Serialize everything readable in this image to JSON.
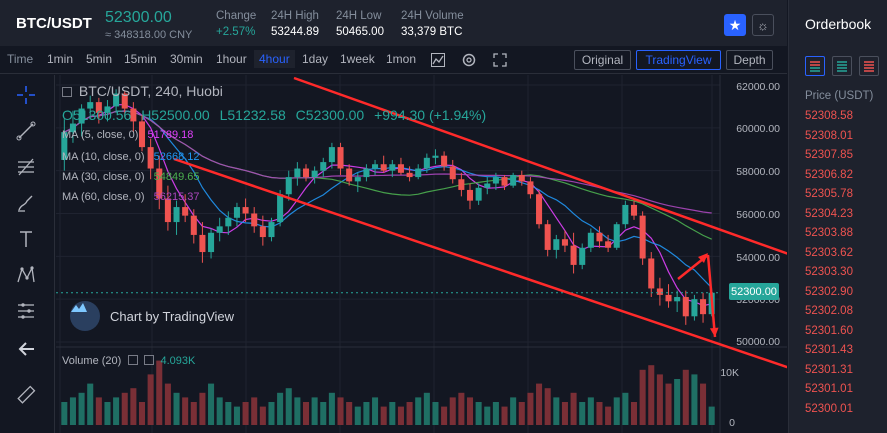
{
  "header": {
    "pair": "BTC/USDT",
    "price": "52300.00",
    "price_cny": "≈ 348318.00 CNY",
    "stats": [
      {
        "label": "Change",
        "value": "+2.57%",
        "up": true
      },
      {
        "label": "24H High",
        "value": "53244.89",
        "up": false
      },
      {
        "label": "24H Low",
        "value": "50465.00",
        "up": false
      },
      {
        "label": "24H Volume",
        "value": "33,379 BTC",
        "up": false
      }
    ],
    "favorite_icon": "star-icon",
    "theme_icon": "sun-icon"
  },
  "toolbar": {
    "time_label": "Time",
    "timeframes": [
      "1min",
      "5min",
      "15min",
      "30min",
      "1hour",
      "4hour",
      "1day",
      "1week",
      "1mon"
    ],
    "active_timeframe": "4hour",
    "views": [
      "Original",
      "TradingView",
      "Depth"
    ],
    "active_view": "TradingView"
  },
  "legend": {
    "symbol": "BTC/USDT, 240, Huobi",
    "open": "O51300.56",
    "high": "H52500.00",
    "low": "L51232.58",
    "close": "C52300.00",
    "change": "+994.30 (+1.94%)",
    "ma": [
      {
        "label": "MA (5, close, 0)",
        "value": "51789.18",
        "color": "#e040fb"
      },
      {
        "label": "MA (10, close, 0)",
        "value": "52668.12",
        "color": "#2196f3"
      },
      {
        "label": "MA (30, close, 0)",
        "value": "54849.65",
        "color": "#4caf50"
      },
      {
        "label": "MA (60, close, 0)",
        "value": "56215.37",
        "color": "#ab47bc"
      }
    ],
    "volume_label": "Volume (20)",
    "volume_value": "4.093K"
  },
  "brand": "Chart by TradingView",
  "price_axis": [
    "62000.00",
    "60000.00",
    "58000.00",
    "56000.00",
    "54000.00",
    "52000.00",
    "50000.00"
  ],
  "current_price_label": "52300.00",
  "volume_axis": [
    "10K",
    "0"
  ],
  "orderbook": {
    "title": "Orderbook",
    "column": "Price (USDT)",
    "prices": [
      "52308.58",
      "52308.01",
      "52307.85",
      "52306.82",
      "52305.78",
      "52304.23",
      "52303.88",
      "52303.62",
      "52303.30",
      "52302.90",
      "52302.08",
      "52301.60",
      "52301.43",
      "52301.31",
      "52301.01",
      "52300.01"
    ]
  },
  "colors": {
    "up": "#26a69a",
    "down": "#ef5350",
    "accent": "#2962ff",
    "annotation": "#ff2a2a"
  },
  "candles": [
    [
      58500,
      60400,
      58000,
      59800
    ],
    [
      59800,
      60800,
      59300,
      60200
    ],
    [
      60200,
      61100,
      59600,
      60900
    ],
    [
      60900,
      61500,
      60400,
      61200
    ],
    [
      61200,
      61400,
      60200,
      60700
    ],
    [
      60700,
      61300,
      60300,
      61000
    ],
    [
      61000,
      61800,
      60700,
      61600
    ],
    [
      61600,
      61700,
      60500,
      60900
    ],
    [
      60900,
      61200,
      59800,
      60300
    ],
    [
      60300,
      60600,
      58900,
      59100
    ],
    [
      59100,
      59500,
      57600,
      58100
    ],
    [
      58100,
      58700,
      56200,
      56700
    ],
    [
      56700,
      57300,
      55200,
      55600
    ],
    [
      55600,
      56600,
      55000,
      56300
    ],
    [
      56300,
      56900,
      55600,
      55900
    ],
    [
      55900,
      56200,
      54600,
      55000
    ],
    [
      55000,
      55600,
      53700,
      54200
    ],
    [
      54200,
      55300,
      53900,
      55100
    ],
    [
      55100,
      55800,
      54700,
      55400
    ],
    [
      55400,
      56100,
      55000,
      55800
    ],
    [
      55800,
      56500,
      55400,
      56300
    ],
    [
      56300,
      56700,
      55600,
      56000
    ],
    [
      56000,
      56300,
      55100,
      55400
    ],
    [
      55400,
      55900,
      54500,
      54900
    ],
    [
      54900,
      55800,
      54700,
      55600
    ],
    [
      55600,
      57100,
      55400,
      56900
    ],
    [
      56900,
      58000,
      56600,
      57700
    ],
    [
      57700,
      58400,
      57300,
      58100
    ],
    [
      58100,
      58300,
      57500,
      57700
    ],
    [
      57700,
      58200,
      57400,
      58000
    ],
    [
      58000,
      58600,
      57700,
      58400
    ],
    [
      58400,
      59300,
      58100,
      59100
    ],
    [
      59100,
      59300,
      57800,
      58100
    ],
    [
      58100,
      58300,
      57300,
      57500
    ],
    [
      57500,
      57900,
      57000,
      57700
    ],
    [
      57700,
      58300,
      57500,
      58100
    ],
    [
      58100,
      58500,
      57800,
      58300
    ],
    [
      58300,
      58700,
      57900,
      58000
    ],
    [
      58000,
      58500,
      57700,
      58300
    ],
    [
      58300,
      58600,
      57800,
      57900
    ],
    [
      57900,
      58200,
      57500,
      57700
    ],
    [
      57700,
      58300,
      57600,
      58100
    ],
    [
      58100,
      58800,
      57900,
      58600
    ],
    [
      58600,
      59000,
      58300,
      58700
    ],
    [
      58700,
      58900,
      58000,
      58200
    ],
    [
      58200,
      58500,
      57400,
      57600
    ],
    [
      57600,
      57900,
      56800,
      57100
    ],
    [
      57100,
      57400,
      56200,
      56600
    ],
    [
      56600,
      57400,
      56400,
      57200
    ],
    [
      57200,
      57700,
      56900,
      57400
    ],
    [
      57400,
      57900,
      57100,
      57700
    ],
    [
      57700,
      57800,
      57100,
      57300
    ],
    [
      57300,
      57900,
      57200,
      57800
    ],
    [
      57800,
      58000,
      57300,
      57500
    ],
    [
      57500,
      57700,
      56700,
      56900
    ],
    [
      56900,
      57100,
      55300,
      55500
    ],
    [
      55500,
      55700,
      54000,
      54300
    ],
    [
      54300,
      55000,
      53900,
      54800
    ],
    [
      54800,
      55200,
      54200,
      54500
    ],
    [
      54500,
      55100,
      53200,
      53600
    ],
    [
      53600,
      54600,
      53400,
      54400
    ],
    [
      54400,
      55300,
      54200,
      55100
    ],
    [
      55100,
      55400,
      54400,
      54700
    ],
    [
      54700,
      55000,
      54200,
      54400
    ],
    [
      54400,
      55600,
      54300,
      55500
    ],
    [
      55500,
      56600,
      55300,
      56400
    ],
    [
      56400,
      56600,
      55700,
      55900
    ],
    [
      55900,
      56100,
      53600,
      53900
    ],
    [
      53900,
      54200,
      52100,
      52500
    ],
    [
      52500,
      53000,
      51700,
      52200
    ],
    [
      52200,
      52700,
      51600,
      51900
    ],
    [
      51900,
      52400,
      51400,
      52100
    ],
    [
      52100,
      52400,
      50800,
      51200
    ],
    [
      51200,
      52200,
      51000,
      52000
    ],
    [
      52000,
      52300,
      50900,
      51300
    ],
    [
      51300,
      52500,
      51200,
      52300
    ]
  ],
  "volumes": [
    5,
    6,
    7,
    9,
    6,
    5,
    6,
    7,
    8,
    5,
    11,
    14,
    9,
    7,
    6,
    5,
    7,
    9,
    6,
    5,
    4,
    5,
    6,
    4,
    5,
    7,
    8,
    6,
    5,
    6,
    5,
    7,
    6,
    5,
    4,
    5,
    6,
    4,
    5,
    4,
    5,
    6,
    7,
    5,
    4,
    6,
    7,
    6,
    5,
    4,
    5,
    4,
    6,
    5,
    7,
    9,
    8,
    6,
    5,
    7,
    5,
    6,
    5,
    4,
    6,
    7,
    5,
    12,
    13,
    11,
    9,
    10,
    12,
    11,
    9,
    4
  ]
}
